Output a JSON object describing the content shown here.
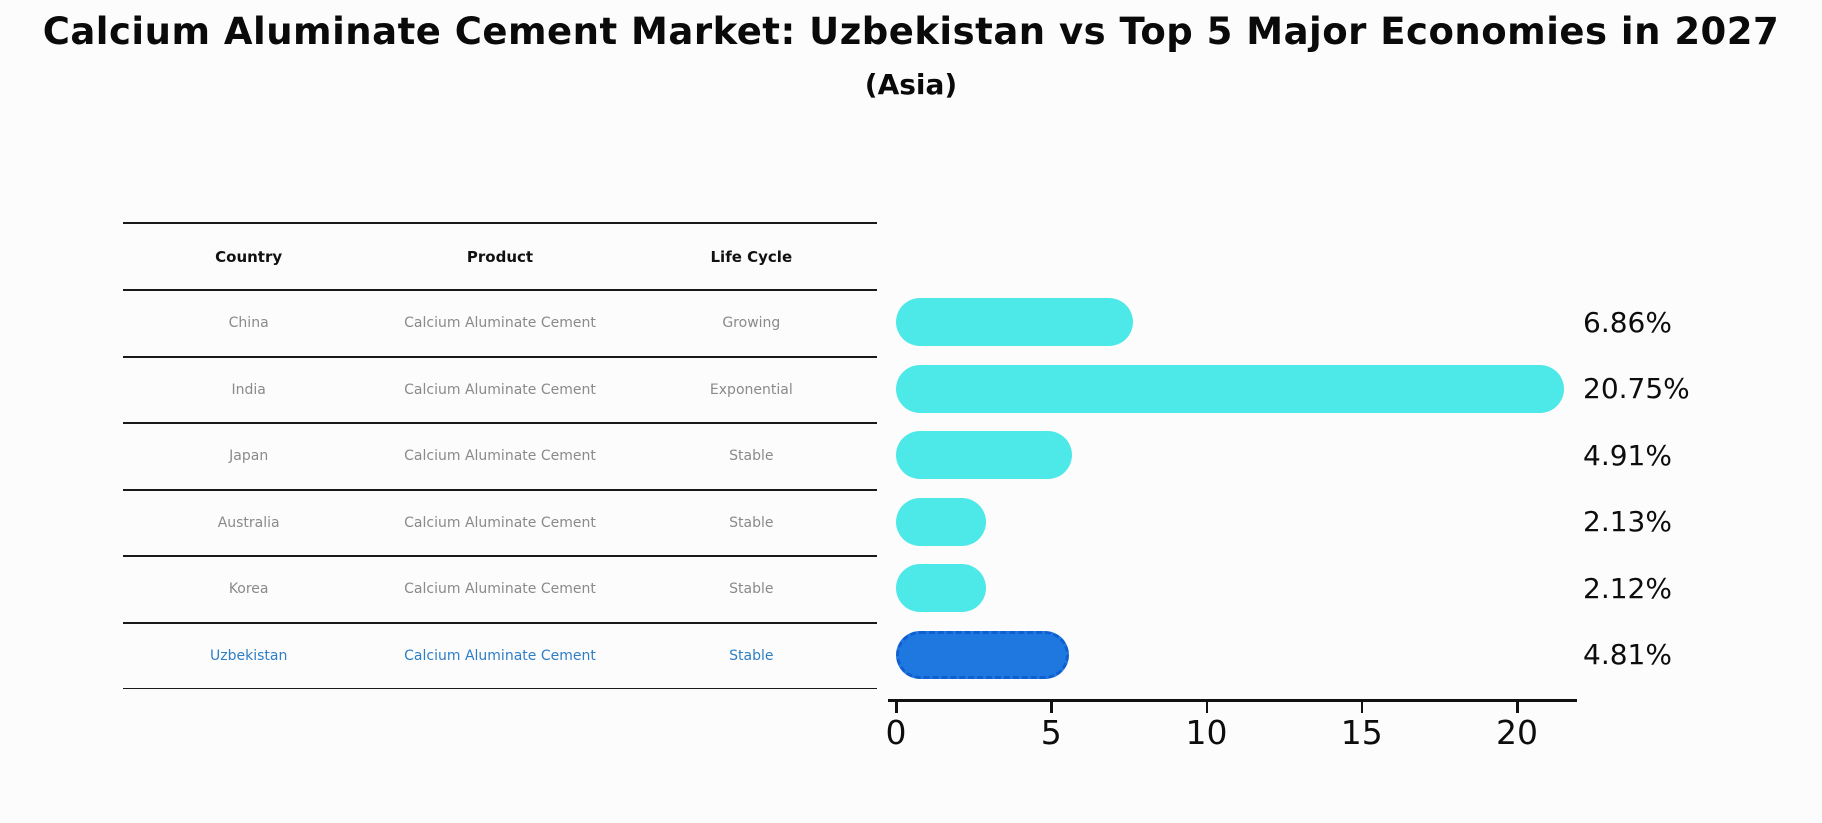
{
  "title": "Calcium Aluminate Cement Market: Uzbekistan vs Top 5 Major Economies in 2027",
  "subtitle": "(Asia)",
  "table": {
    "headers": [
      "Country",
      "Product",
      "Life Cycle"
    ],
    "rows": [
      {
        "country": "China",
        "product": "Calcium Aluminate Cement",
        "life_cycle": "Growing",
        "highlighted": false
      },
      {
        "country": "India",
        "product": "Calcium Aluminate Cement",
        "life_cycle": "Exponential",
        "highlighted": false
      },
      {
        "country": "Japan",
        "product": "Calcium Aluminate Cement",
        "life_cycle": "Stable",
        "highlighted": false
      },
      {
        "country": "Australia",
        "product": "Calcium Aluminate Cement",
        "life_cycle": "Stable",
        "highlighted": false
      },
      {
        "country": "Korea",
        "product": "Calcium Aluminate Cement",
        "life_cycle": "Stable",
        "highlighted": false
      },
      {
        "country": "Uzbekistan",
        "product": "Calcium Aluminate Cement",
        "life_cycle": "Stable",
        "highlighted": true
      }
    ]
  },
  "chart_data": {
    "type": "bar",
    "orientation": "horizontal",
    "title": "Calcium Aluminate Cement Market: Uzbekistan vs Top 5 Major Economies in 2027 (Asia)",
    "categories": [
      "China",
      "India",
      "Japan",
      "Australia",
      "Korea",
      "Uzbekistan"
    ],
    "values": [
      6.86,
      20.75,
      4.91,
      2.13,
      2.12,
      4.81
    ],
    "value_labels": [
      "6.86%",
      "20.75%",
      "4.91%",
      "2.13%",
      "2.12%",
      "4.81%"
    ],
    "xlim": [
      0,
      21.9
    ],
    "x_ticks": [
      0,
      5,
      10,
      15,
      20
    ],
    "x_tick_labels": [
      "0",
      "5",
      "10",
      "15",
      "20"
    ],
    "grid": false,
    "legend": false,
    "bar_color": "#4de8e8",
    "highlight_color": "#1e78e0",
    "highlight_index": 5,
    "highlight_category": "Uzbekistan"
  },
  "colors": {
    "bar_cyan": "#4de8e8",
    "bar_blue": "#1e78e0",
    "highlight_text": "#2e7ec6",
    "table_text": "#8a8a8a",
    "axis": "#111111"
  }
}
